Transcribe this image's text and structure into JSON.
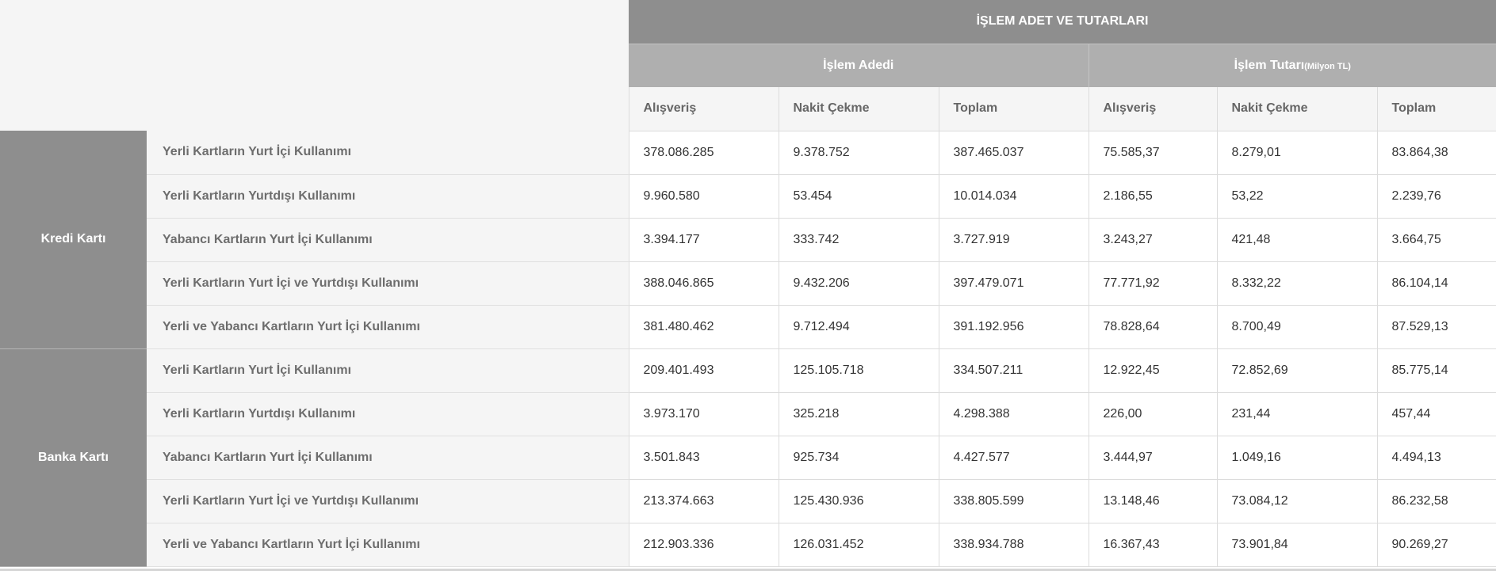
{
  "header": {
    "main_title": "İŞLEM ADET VE TUTARLARI",
    "group_count": "İşlem Adedi",
    "group_amount": "İşlem Tutarı",
    "group_amount_unit": "(Milyon TL)"
  },
  "columns": [
    "Alışveriş",
    "Nakit Çekme",
    "Toplam",
    "Alışveriş",
    "Nakit Çekme",
    "Toplam"
  ],
  "groups": [
    {
      "name": "Kredi Kartı",
      "rows": [
        {
          "label": "Yerli Kartların Yurt İçi Kullanımı",
          "values": [
            "378.086.285",
            "9.378.752",
            "387.465.037",
            "75.585,37",
            "8.279,01",
            "83.864,38"
          ]
        },
        {
          "label": "Yerli Kartların Yurtdışı Kullanımı",
          "values": [
            "9.960.580",
            "53.454",
            "10.014.034",
            "2.186,55",
            "53,22",
            "2.239,76"
          ]
        },
        {
          "label": "Yabancı Kartların Yurt İçi Kullanımı",
          "values": [
            "3.394.177",
            "333.742",
            "3.727.919",
            "3.243,27",
            "421,48",
            "3.664,75"
          ]
        },
        {
          "label": "Yerli Kartların Yurt İçi ve Yurtdışı Kullanımı",
          "values": [
            "388.046.865",
            "9.432.206",
            "397.479.071",
            "77.771,92",
            "8.332,22",
            "86.104,14"
          ]
        },
        {
          "label": "Yerli ve Yabancı Kartların Yurt İçi Kullanımı",
          "values": [
            "381.480.462",
            "9.712.494",
            "391.192.956",
            "78.828,64",
            "8.700,49",
            "87.529,13"
          ]
        }
      ]
    },
    {
      "name": "Banka Kartı",
      "rows": [
        {
          "label": "Yerli Kartların Yurt İçi Kullanımı",
          "values": [
            "209.401.493",
            "125.105.718",
            "334.507.211",
            "12.922,45",
            "72.852,69",
            "85.775,14"
          ]
        },
        {
          "label": "Yerli Kartların Yurtdışı Kullanımı",
          "values": [
            "3.973.170",
            "325.218",
            "4.298.388",
            "226,00",
            "231,44",
            "457,44"
          ]
        },
        {
          "label": "Yabancı Kartların Yurt İçi Kullanımı",
          "values": [
            "3.501.843",
            "925.734",
            "4.427.577",
            "3.444,97",
            "1.049,16",
            "4.494,13"
          ]
        },
        {
          "label": "Yerli Kartların Yurt İçi ve Yurtdışı Kullanımı",
          "values": [
            "213.374.663",
            "125.430.936",
            "338.805.599",
            "13.148,46",
            "73.084,12",
            "86.232,58"
          ]
        },
        {
          "label": "Yerli ve Yabancı Kartların Yurt İçi Kullanımı",
          "values": [
            "212.903.336",
            "126.031.452",
            "338.934.788",
            "16.367,43",
            "73.901,84",
            "90.269,27"
          ]
        }
      ]
    }
  ]
}
